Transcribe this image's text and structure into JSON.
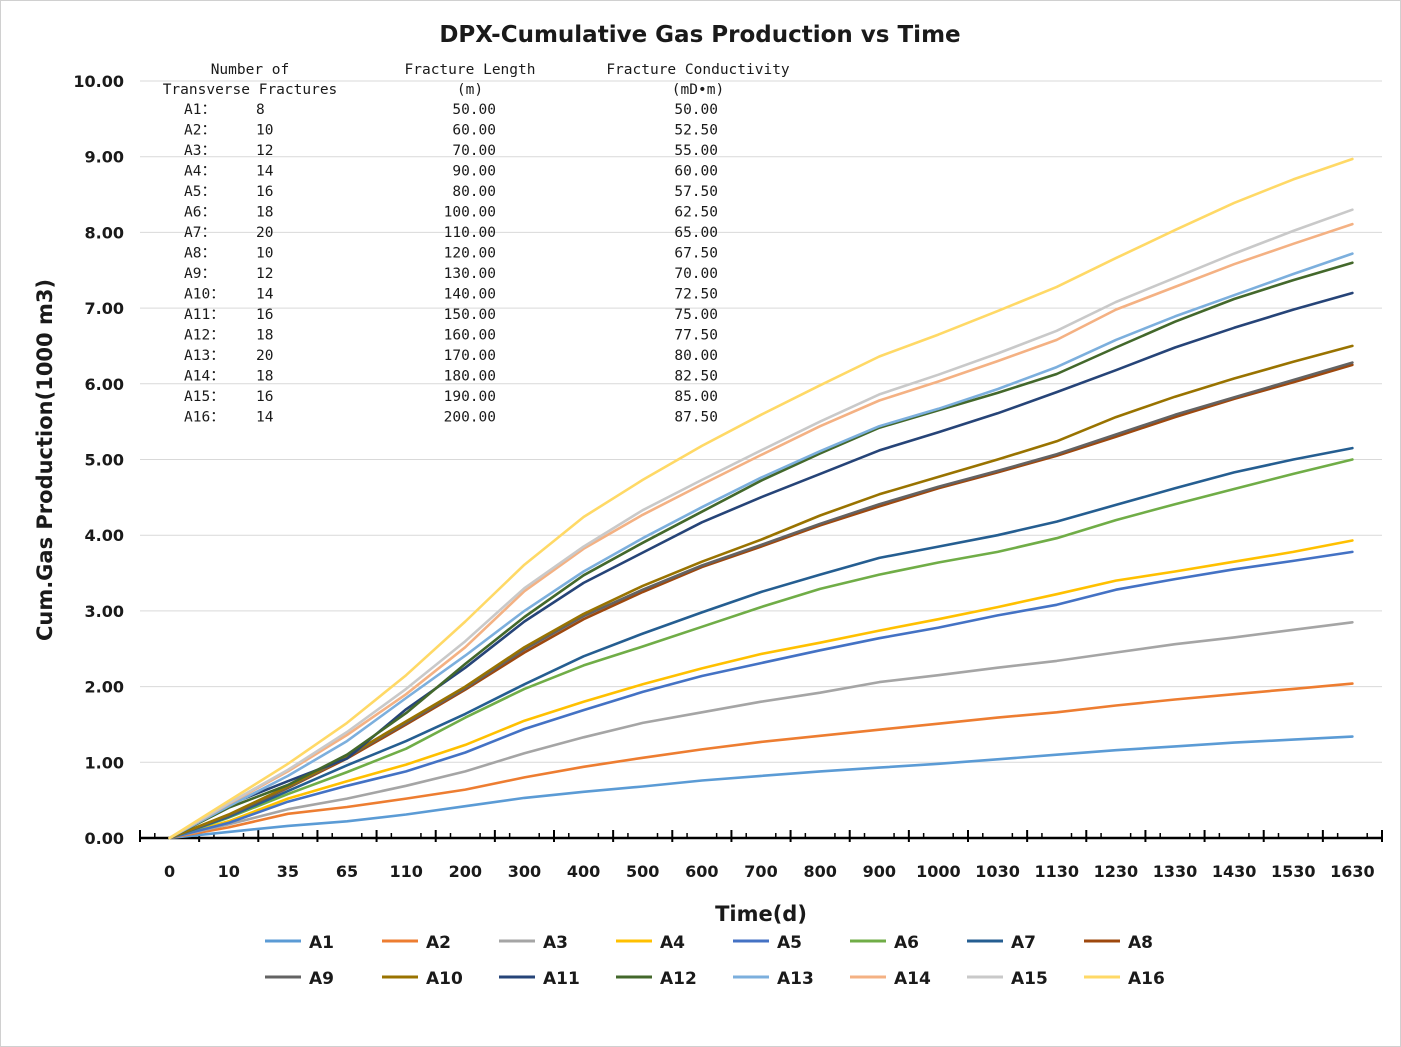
{
  "chart_data": {
    "type": "line",
    "title": "DPX-Cumulative Gas Production vs Time",
    "xlabel": "Time(d)",
    "ylabel": "Cum.Gas Production(1000 m3)",
    "ylim": [
      0,
      10
    ],
    "yticks": [
      "0.00",
      "1.00",
      "2.00",
      "3.00",
      "4.00",
      "5.00",
      "6.00",
      "7.00",
      "8.00",
      "9.00",
      "10.00"
    ],
    "categories": [
      "0",
      "10",
      "35",
      "65",
      "110",
      "200",
      "300",
      "400",
      "500",
      "600",
      "700",
      "800",
      "900",
      "1000",
      "1030",
      "1130",
      "1230",
      "1330",
      "1430",
      "1530",
      "1630"
    ],
    "grid": "horizontal",
    "legend_position": "bottom",
    "series": [
      {
        "name": "A1",
        "color": "#5B9BD5",
        "values": [
          0,
          0.08,
          0.16,
          0.22,
          0.31,
          0.42,
          0.53,
          0.61,
          0.68,
          0.76,
          0.82,
          0.88,
          0.93,
          0.98,
          1.04,
          1.1,
          1.16,
          1.21,
          1.26,
          1.3,
          1.34
        ]
      },
      {
        "name": "A2",
        "color": "#ED7D31",
        "values": [
          0,
          0.14,
          0.32,
          0.41,
          0.52,
          0.64,
          0.8,
          0.94,
          1.06,
          1.17,
          1.27,
          1.35,
          1.43,
          1.51,
          1.59,
          1.66,
          1.75,
          1.83,
          1.9,
          1.97,
          2.04
        ]
      },
      {
        "name": "A3",
        "color": "#A5A5A5",
        "values": [
          0,
          0.18,
          0.38,
          0.52,
          0.69,
          0.88,
          1.12,
          1.33,
          1.52,
          1.66,
          1.8,
          1.92,
          2.06,
          2.15,
          2.25,
          2.34,
          2.45,
          2.56,
          2.65,
          2.75,
          2.85
        ]
      },
      {
        "name": "A4",
        "color": "#FFC000",
        "values": [
          0,
          0.22,
          0.52,
          0.75,
          0.97,
          1.23,
          1.55,
          1.8,
          2.03,
          2.24,
          2.43,
          2.58,
          2.74,
          2.89,
          3.05,
          3.22,
          3.4,
          3.52,
          3.65,
          3.78,
          3.93
        ]
      },
      {
        "name": "A5",
        "color": "#4472C4",
        "values": [
          0,
          0.2,
          0.48,
          0.69,
          0.88,
          1.13,
          1.44,
          1.69,
          1.93,
          2.14,
          2.31,
          2.48,
          2.64,
          2.78,
          2.94,
          3.08,
          3.28,
          3.42,
          3.55,
          3.66,
          3.78
        ]
      },
      {
        "name": "A6",
        "color": "#70AD47",
        "values": [
          0,
          0.27,
          0.58,
          0.87,
          1.18,
          1.59,
          1.97,
          2.28,
          2.53,
          2.79,
          3.05,
          3.29,
          3.48,
          3.64,
          3.78,
          3.96,
          4.2,
          4.41,
          4.61,
          4.81,
          5.0
        ]
      },
      {
        "name": "A7",
        "color": "#255E91",
        "values": [
          0,
          0.28,
          0.62,
          0.96,
          1.28,
          1.64,
          2.03,
          2.4,
          2.7,
          2.98,
          3.25,
          3.48,
          3.7,
          3.85,
          4.0,
          4.18,
          4.4,
          4.62,
          4.83,
          5.0,
          5.15
        ]
      },
      {
        "name": "A8",
        "color": "#9E480E",
        "values": [
          0,
          0.3,
          0.66,
          1.05,
          1.5,
          1.96,
          2.45,
          2.89,
          3.25,
          3.58,
          3.85,
          4.13,
          4.38,
          4.62,
          4.83,
          5.05,
          5.3,
          5.56,
          5.8,
          6.02,
          6.25
        ]
      },
      {
        "name": "A9",
        "color": "#636363",
        "values": [
          0,
          0.3,
          0.67,
          1.07,
          1.52,
          1.98,
          2.49,
          2.93,
          3.28,
          3.6,
          3.87,
          4.15,
          4.41,
          4.64,
          4.85,
          5.07,
          5.33,
          5.59,
          5.82,
          6.05,
          6.28
        ]
      },
      {
        "name": "A10",
        "color": "#997300",
        "values": [
          0,
          0.31,
          0.68,
          1.08,
          1.54,
          2.0,
          2.52,
          2.96,
          3.33,
          3.65,
          3.94,
          4.26,
          4.54,
          4.77,
          5.0,
          5.24,
          5.56,
          5.83,
          6.07,
          6.29,
          6.5
        ]
      },
      {
        "name": "A11",
        "color": "#264478",
        "values": [
          0,
          0.44,
          0.75,
          1.05,
          1.7,
          2.25,
          2.86,
          3.37,
          3.77,
          4.17,
          4.5,
          4.81,
          5.12,
          5.36,
          5.61,
          5.89,
          6.18,
          6.48,
          6.74,
          6.98,
          7.2
        ]
      },
      {
        "name": "A12",
        "color": "#43682B",
        "values": [
          0,
          0.4,
          0.7,
          1.1,
          1.65,
          2.3,
          2.92,
          3.47,
          3.9,
          4.31,
          4.72,
          5.08,
          5.42,
          5.65,
          5.88,
          6.13,
          6.48,
          6.82,
          7.12,
          7.37,
          7.6
        ]
      },
      {
        "name": "A13",
        "color": "#7CAFDD",
        "values": [
          0,
          0.42,
          0.82,
          1.28,
          1.85,
          2.41,
          3.0,
          3.52,
          3.96,
          4.37,
          4.76,
          5.11,
          5.44,
          5.67,
          5.93,
          6.22,
          6.58,
          6.89,
          7.17,
          7.45,
          7.72
        ]
      },
      {
        "name": "A14",
        "color": "#F4B183",
        "values": [
          0,
          0.45,
          0.88,
          1.36,
          1.9,
          2.52,
          3.26,
          3.82,
          4.27,
          4.67,
          5.06,
          5.44,
          5.78,
          6.03,
          6.3,
          6.58,
          6.98,
          7.28,
          7.58,
          7.85,
          8.11
        ]
      },
      {
        "name": "A15",
        "color": "#C9C9C9",
        "values": [
          0,
          0.46,
          0.9,
          1.4,
          1.97,
          2.6,
          3.3,
          3.85,
          4.33,
          4.73,
          5.12,
          5.5,
          5.86,
          6.12,
          6.4,
          6.7,
          7.08,
          7.4,
          7.72,
          8.02,
          8.3
        ]
      },
      {
        "name": "A16",
        "color": "#FFD966",
        "values": [
          0,
          0.49,
          0.98,
          1.52,
          2.15,
          2.86,
          3.61,
          4.24,
          4.73,
          5.18,
          5.59,
          5.98,
          6.36,
          6.65,
          6.96,
          7.28,
          7.66,
          8.03,
          8.39,
          8.7,
          8.97
        ]
      }
    ],
    "annotation_table": {
      "headers": [
        [
          "Number of",
          "Transverse Fractures"
        ],
        [
          "Fracture Length",
          "(m)"
        ],
        [
          "Fracture Conductivity",
          "(mD•m)"
        ]
      ],
      "rows": [
        {
          "label": "A1：",
          "fractures": "8",
          "length": "50.00",
          "conductivity": "50.00"
        },
        {
          "label": "A2：",
          "fractures": "10",
          "length": "60.00",
          "conductivity": "52.50"
        },
        {
          "label": "A3：",
          "fractures": "12",
          "length": "70.00",
          "conductivity": "55.00"
        },
        {
          "label": "A4：",
          "fractures": "14",
          "length": "90.00",
          "conductivity": "60.00"
        },
        {
          "label": "A5：",
          "fractures": "16",
          "length": "80.00",
          "conductivity": "57.50"
        },
        {
          "label": "A6：",
          "fractures": "18",
          "length": "100.00",
          "conductivity": "62.50"
        },
        {
          "label": "A7：",
          "fractures": "20",
          "length": "110.00",
          "conductivity": "65.00"
        },
        {
          "label": "A8：",
          "fractures": "10",
          "length": "120.00",
          "conductivity": "67.50"
        },
        {
          "label": "A9：",
          "fractures": "12",
          "length": "130.00",
          "conductivity": "70.00"
        },
        {
          "label": "A10：",
          "fractures": "14",
          "length": "140.00",
          "conductivity": "72.50"
        },
        {
          "label": "A11：",
          "fractures": "16",
          "length": "150.00",
          "conductivity": "75.00"
        },
        {
          "label": "A12：",
          "fractures": "18",
          "length": "160.00",
          "conductivity": "77.50"
        },
        {
          "label": "A13：",
          "fractures": "20",
          "length": "170.00",
          "conductivity": "80.00"
        },
        {
          "label": "A14：",
          "fractures": "18",
          "length": "180.00",
          "conductivity": "82.50"
        },
        {
          "label": "A15：",
          "fractures": "16",
          "length": "190.00",
          "conductivity": "85.00"
        },
        {
          "label": "A16：",
          "fractures": "14",
          "length": "200.00",
          "conductivity": "87.50"
        }
      ]
    }
  }
}
